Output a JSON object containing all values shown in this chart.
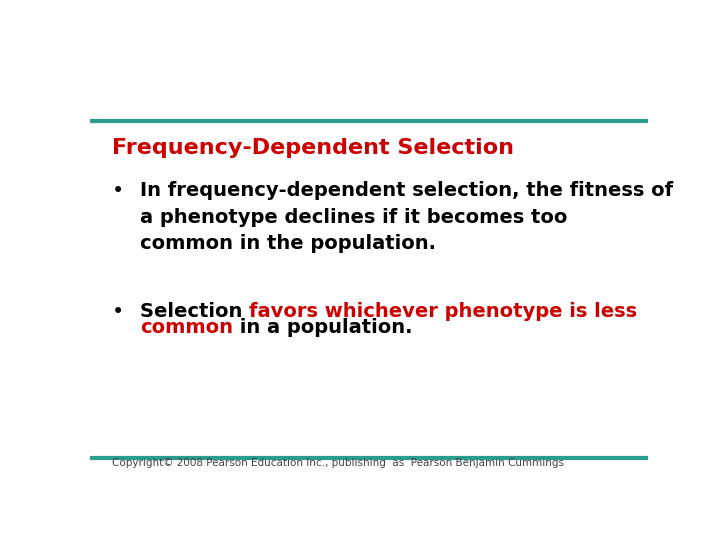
{
  "title": "Frequency-Dependent Selection",
  "title_color": "#cc0000",
  "title_fontsize": 16,
  "background_color": "#ffffff",
  "top_line_color": "#2a9d8f",
  "bottom_line_color": "#2a9d8f",
  "line_thickness": 3,
  "bullet_fontsize": 14,
  "bullet_color": "#000000",
  "highlight_color": "#cc0000",
  "bullet1_text": "In frequency-dependent selection, the fitness of\na phenotype declines if it becomes too\ncommon in the population.",
  "bullet2_black1": "Selection ",
  "bullet2_red": "favors whichever phenotype is less\ncommon",
  "bullet2_black2": " in a population.",
  "copyright": "Copyright© 2008 Pearson Education Inc., publishing  as  Pearson Benjamin Cummings",
  "copyright_fontsize": 7.5,
  "copyright_color": "#444444"
}
